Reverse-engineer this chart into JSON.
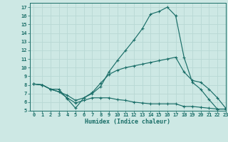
{
  "xlabel": "Humidex (Indice chaleur)",
  "background_color": "#cde8e4",
  "grid_color": "#b8d8d4",
  "line_color": "#1a6e68",
  "xlim": [
    -0.5,
    23
  ],
  "ylim": [
    5,
    17.5
  ],
  "xticks": [
    0,
    1,
    2,
    3,
    4,
    5,
    6,
    7,
    8,
    9,
    10,
    11,
    12,
    13,
    14,
    15,
    16,
    17,
    18,
    19,
    20,
    21,
    22,
    23
  ],
  "yticks": [
    5,
    6,
    7,
    8,
    9,
    10,
    11,
    12,
    13,
    14,
    15,
    16,
    17
  ],
  "line1_x": [
    0,
    1,
    2,
    3,
    4,
    5,
    6,
    7,
    8,
    9,
    10,
    11,
    12,
    13,
    14,
    15,
    16,
    17,
    18,
    19,
    20,
    21,
    22,
    23
  ],
  "line1_y": [
    8.1,
    8.0,
    7.5,
    7.5,
    6.4,
    5.3,
    6.5,
    7.0,
    7.8,
    9.5,
    10.8,
    12.0,
    13.2,
    14.5,
    16.2,
    16.5,
    17.0,
    16.0,
    11.2,
    8.3,
    7.5,
    6.3,
    5.2,
    5.2
  ],
  "line2_x": [
    0,
    1,
    2,
    3,
    4,
    5,
    6,
    7,
    8,
    9,
    10,
    11,
    12,
    13,
    14,
    15,
    16,
    17,
    18,
    19,
    20,
    21,
    22,
    23
  ],
  "line2_y": [
    8.1,
    8.0,
    7.5,
    7.2,
    6.8,
    6.2,
    6.5,
    7.1,
    8.2,
    9.2,
    9.7,
    10.0,
    10.2,
    10.4,
    10.6,
    10.8,
    11.0,
    11.2,
    9.5,
    8.5,
    8.3,
    7.5,
    6.5,
    5.3
  ],
  "line3_x": [
    0,
    1,
    2,
    3,
    4,
    5,
    6,
    7,
    8,
    9,
    10,
    11,
    12,
    13,
    14,
    15,
    16,
    17,
    18,
    19,
    20,
    21,
    22,
    23
  ],
  "line3_y": [
    8.1,
    8.0,
    7.5,
    7.2,
    6.5,
    5.9,
    6.2,
    6.5,
    6.5,
    6.5,
    6.3,
    6.2,
    6.0,
    5.9,
    5.8,
    5.8,
    5.8,
    5.8,
    5.5,
    5.5,
    5.4,
    5.3,
    5.2,
    5.2
  ]
}
